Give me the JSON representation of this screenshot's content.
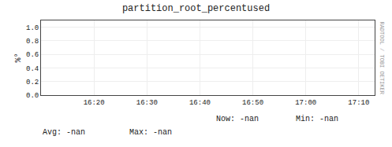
{
  "chart_data": {
    "type": "line",
    "title": "partition_root_percentused",
    "ylabel": "%°",
    "x": [],
    "series": [
      {
        "name": "partition_root_percentused",
        "color": "#555555",
        "values": []
      }
    ],
    "xlim": [
      0,
      63
    ],
    "xticks": [
      {
        "value": 10,
        "label": "16:20"
      },
      {
        "value": 20,
        "label": "16:30"
      },
      {
        "value": 30,
        "label": "16:40"
      },
      {
        "value": 40,
        "label": "16:50"
      },
      {
        "value": 50,
        "label": "17:00"
      },
      {
        "value": 60,
        "label": "17:10"
      }
    ],
    "ylim": [
      0.0,
      1.1
    ],
    "yticks": [
      {
        "value": 0.0,
        "label": "0.0"
      },
      0.2,
      0.4,
      0.6,
      0.8,
      {
        "value": 1.0,
        "label": "1.0"
      }
    ],
    "grid": true,
    "legend": "bottom",
    "annotations": [
      "Now:",
      "-nan",
      "Min:",
      "-nan",
      "Avg:",
      "-nan",
      "Max:",
      "-nan",
      "RADTOOL / TOBI OETIKER"
    ]
  }
}
